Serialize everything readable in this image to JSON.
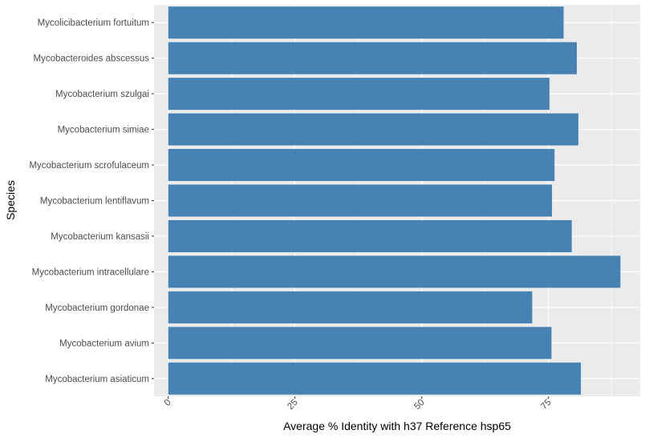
{
  "chart_data": {
    "type": "bar",
    "orientation": "horizontal",
    "categories": [
      "Mycolicibacterium fortuitum",
      "Mycobacteroides abscessus",
      "Mycobacterium szulgai",
      "Mycobacterium simiae",
      "Mycobacterium scrofulaceum",
      "Mycobacterium lentiflavum",
      "Mycobacterium kansasii",
      "Mycobacterium intracellulare",
      "Mycobacterium gordonae",
      "Mycobacterium avium",
      "Mycobacterium asiaticum"
    ],
    "values": [
      78.0,
      80.6,
      75.2,
      80.9,
      76.2,
      75.7,
      79.6,
      89.2,
      71.8,
      75.6,
      81.4
    ],
    "title": "",
    "xlabel": "Average % Identity with h37 Reference hsp65",
    "ylabel": "Species",
    "xlim": [
      -2.8,
      93.1
    ],
    "xticks": [
      0,
      25,
      50,
      75
    ],
    "grid": true,
    "colors": {
      "bar": "#4682B4",
      "panel_background": "#EBEBEB",
      "grid_major": "#FFFFFF",
      "tick_text": "#4D4D4D",
      "title_text": "#000000"
    }
  }
}
